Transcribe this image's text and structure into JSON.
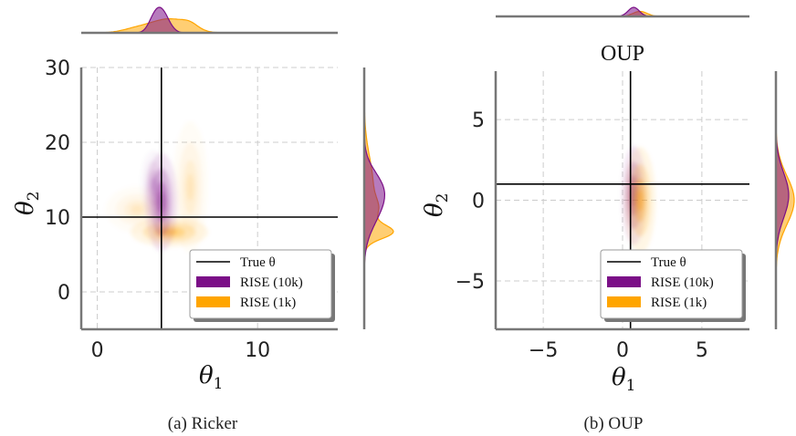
{
  "colors": {
    "rise10k": "#7b0f87",
    "rise1k": "#ffa500",
    "truth": "#000000",
    "grid": "#cccccc",
    "spine": "#777777"
  },
  "chart_data": [
    {
      "type": "scatter",
      "panel": "ricker",
      "title": "",
      "caption": "(a) Ricker",
      "xlabel": "θ",
      "xlabel_sub": "1",
      "ylabel": "θ",
      "ylabel_sub": "2",
      "xlim": [
        -1,
        15
      ],
      "ylim": [
        -5,
        30
      ],
      "xticks": [
        0,
        10
      ],
      "yticks": [
        0,
        10,
        20,
        30
      ],
      "grid": true,
      "true_theta": [
        4,
        10
      ],
      "legend": {
        "placement": "lower-right",
        "entries": [
          "True θ",
          "RISE (10k)",
          "RISE (1k)"
        ]
      },
      "series": [
        {
          "name": "RISE (10k)",
          "kind": "kde",
          "modes": [
            {
              "x": 4.0,
              "y": 12.0,
              "sx": 0.45,
              "sy": 3.0,
              "w": 1.0
            },
            {
              "x": 3.5,
              "y": 14.5,
              "sx": 0.35,
              "sy": 2.0,
              "w": 0.35
            }
          ]
        },
        {
          "name": "RISE (1k)",
          "kind": "kde",
          "modes": [
            {
              "x": 4.5,
              "y": 8.0,
              "sx": 1.1,
              "sy": 0.9,
              "w": 1.0
            },
            {
              "x": 5.8,
              "y": 14.0,
              "sx": 0.5,
              "sy": 4.0,
              "w": 0.35
            },
            {
              "x": 2.5,
              "y": 11.0,
              "sx": 0.9,
              "sy": 1.4,
              "w": 0.3
            }
          ]
        }
      ]
    },
    {
      "type": "scatter",
      "panel": "oup",
      "title": "OUP",
      "caption": "(b) OUP",
      "xlabel": "θ",
      "xlabel_sub": "1",
      "ylabel": "θ",
      "ylabel_sub": "2",
      "xlim": [
        -8,
        8
      ],
      "ylim": [
        -8,
        8
      ],
      "xticks": [
        -5,
        0,
        5
      ],
      "yticks": [
        -5,
        0,
        5
      ],
      "grid": true,
      "true_theta": [
        0.5,
        1
      ],
      "legend": {
        "placement": "lower-right",
        "entries": [
          "True θ",
          "RISE (10k)",
          "RISE (1k)"
        ]
      },
      "series": [
        {
          "name": "RISE (10k)",
          "kind": "kde",
          "modes": [
            {
              "x": 0.7,
              "y": 0.3,
              "sx": 0.35,
              "sy": 1.4,
              "w": 1.0
            }
          ]
        },
        {
          "name": "RISE (1k)",
          "kind": "kde",
          "modes": [
            {
              "x": 1.1,
              "y": 0.0,
              "sx": 0.45,
              "sy": 1.5,
              "w": 1.0
            }
          ]
        }
      ]
    }
  ]
}
